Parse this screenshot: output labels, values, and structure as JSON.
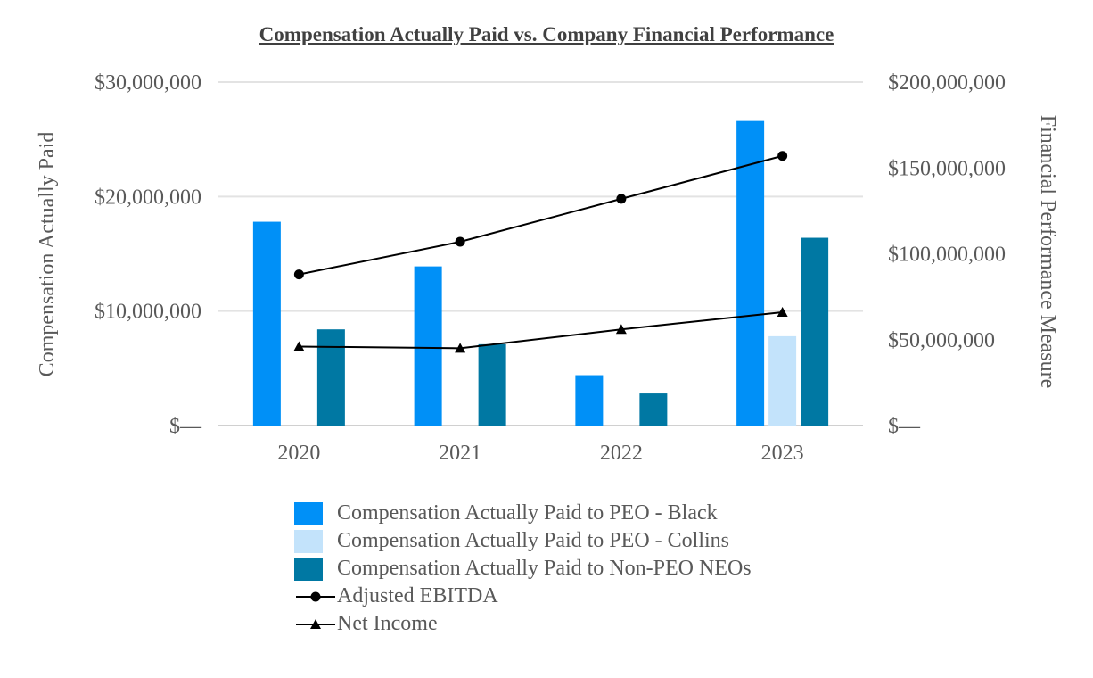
{
  "chart_data": {
    "type": "bar",
    "title": "Compensation Actually Paid vs. Company Financial Performance",
    "categories": [
      "2020",
      "2021",
      "2022",
      "2023"
    ],
    "ylabel": "Compensation Actually Paid",
    "y2label": "Financial Performance Measure",
    "ylim": [
      0,
      30000000
    ],
    "y2lim": [
      0,
      200000000
    ],
    "yticks": [
      "$—",
      "$10,000,000",
      "$20,000,000",
      "$30,000,000"
    ],
    "y2ticks": [
      "$—",
      "$50,000,000",
      "$100,000,000",
      "$150,000,000",
      "$200,000,000"
    ],
    "grid": true,
    "legend_position": "bottom",
    "bar_series": [
      {
        "name": "Compensation Actually Paid to PEO - Black",
        "color": "#0090F7",
        "values": [
          17800000,
          13900000,
          4400000,
          26600000
        ]
      },
      {
        "name": "Compensation Actually Paid to PEO - Collins",
        "color": "#C3E3FB",
        "values": [
          null,
          null,
          null,
          7800000
        ]
      },
      {
        "name": "Compensation Actually Paid to Non-PEO NEOs",
        "color": "#0078A3",
        "values": [
          8400000,
          7100000,
          2800000,
          16400000
        ]
      }
    ],
    "line_series": [
      {
        "name": "Adjusted EBITDA",
        "marker": "circle",
        "color": "#000000",
        "axis": "right",
        "values": [
          88000000,
          107000000,
          132000000,
          157000000
        ]
      },
      {
        "name": "Net Income",
        "marker": "triangle",
        "color": "#000000",
        "axis": "right",
        "values": [
          46000000,
          45000000,
          56000000,
          66000000
        ]
      }
    ]
  }
}
